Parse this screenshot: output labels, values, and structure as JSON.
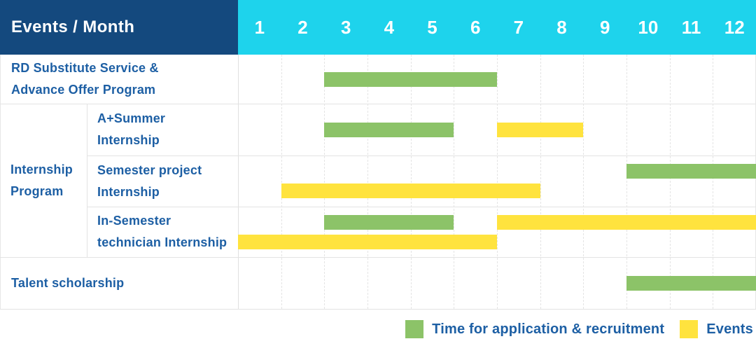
{
  "header": {
    "corner_label": "Events / Month",
    "months": [
      "1",
      "2",
      "3",
      "4",
      "5",
      "6",
      "7",
      "8",
      "9",
      "10",
      "11",
      "12"
    ]
  },
  "colors": {
    "header_navy": "#14497E",
    "header_cyan": "#1ED3EC",
    "bar_green": "#8CC368",
    "bar_yellow": "#FFE33E",
    "label_blue": "#1D5FA4",
    "grid_gray": "#E4E4E4"
  },
  "legend": {
    "items": [
      {
        "key": "application",
        "label": "Time for application & recruitment",
        "color": "#8CC368"
      },
      {
        "key": "event",
        "label": "Events",
        "color": "#FFE33E"
      }
    ]
  },
  "chart_data": {
    "type": "bar",
    "subtype": "gantt-timeline",
    "title": "Events / Month",
    "xlabel": "Month",
    "x_ticks": [
      1,
      2,
      3,
      4,
      5,
      6,
      7,
      8,
      9,
      10,
      11,
      12
    ],
    "x_range": [
      1,
      12
    ],
    "grid": "vertical-dashed",
    "legend_position": "bottom-right",
    "series_legend": {
      "application": "Time for application & recruitment",
      "event": "Events"
    },
    "group_label": "Internship Program",
    "rows": [
      {
        "label": "RD Substitute Service &\nAdvance Offer Program",
        "group": null,
        "bars": [
          {
            "kind": "application",
            "start_month": 3,
            "end_month": 6,
            "track": "center"
          }
        ]
      },
      {
        "label": "A+Summer\nInternship",
        "group": "Internship Program",
        "bars": [
          {
            "kind": "application",
            "start_month": 3,
            "end_month": 5,
            "track": "center"
          },
          {
            "kind": "event",
            "start_month": 7,
            "end_month": 8,
            "track": "center"
          }
        ]
      },
      {
        "label": "Semester project\nInternship",
        "group": "Internship Program",
        "bars": [
          {
            "kind": "application",
            "start_month": 10,
            "end_month": 12,
            "track": "top"
          },
          {
            "kind": "event",
            "start_month": 2,
            "end_month": 7,
            "track": "bottom"
          }
        ]
      },
      {
        "label": "In-Semester\ntechnician Internship",
        "group": "Internship Program",
        "bars": [
          {
            "kind": "application",
            "start_month": 3,
            "end_month": 5,
            "track": "top"
          },
          {
            "kind": "event",
            "start_month": 7,
            "end_month": 12,
            "track": "top"
          },
          {
            "kind": "event",
            "start_month": 1,
            "end_month": 6,
            "track": "bottom"
          }
        ]
      },
      {
        "label": "Talent scholarship",
        "group": null,
        "bars": [
          {
            "kind": "application",
            "start_month": 10,
            "end_month": 12,
            "track": "center"
          }
        ]
      }
    ]
  }
}
